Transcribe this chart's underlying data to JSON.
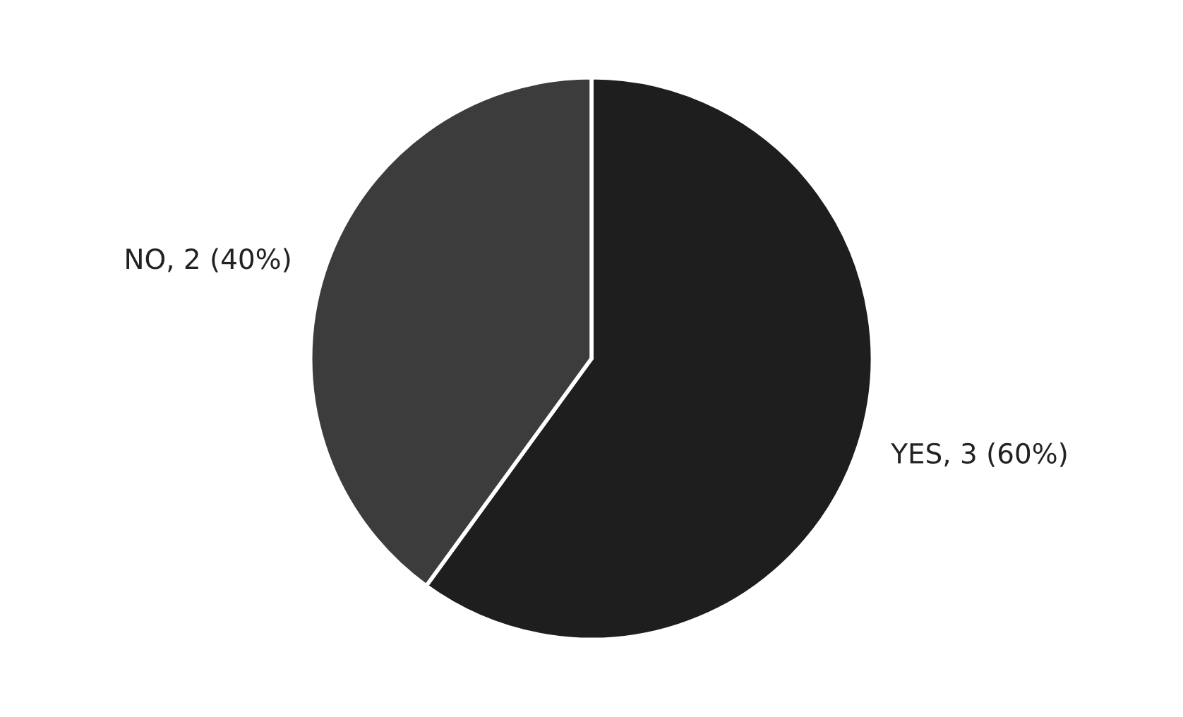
{
  "chart_data": {
    "type": "pie",
    "categories": [
      "YES, 3 (60%)",
      "NO, 2 (40%)"
    ],
    "values": [
      3,
      2
    ],
    "colors": [
      "#1e1e1e",
      "#3c3c3c"
    ]
  }
}
